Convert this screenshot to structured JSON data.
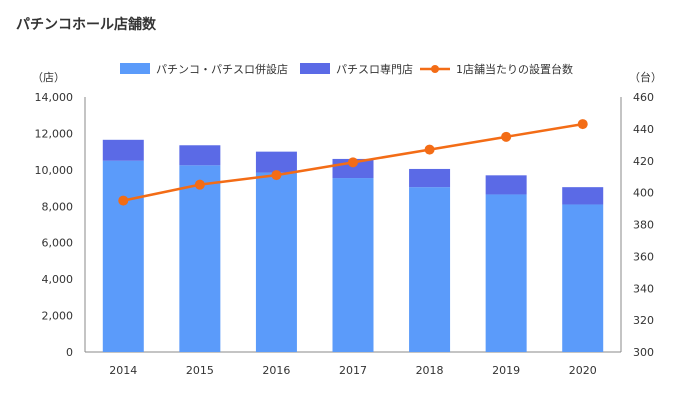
{
  "chart_data": {
    "type": "bar",
    "title": "パチンコホール店舗数",
    "categories": [
      "2014",
      "2015",
      "2016",
      "2017",
      "2018",
      "2019",
      "2020"
    ],
    "series": [
      {
        "name": "パチンコ・パチスロ併設店",
        "type": "bar",
        "stack": "stores",
        "axis": "left",
        "color": "#5b9bfa",
        "values": [
          10500,
          10250,
          9850,
          9550,
          9050,
          8650,
          8100
        ]
      },
      {
        "name": "パチスロ専門店",
        "type": "bar",
        "stack": "stores",
        "axis": "left",
        "color": "#5b6ae6",
        "values": [
          1150,
          1100,
          1150,
          1050,
          1000,
          1050,
          950
        ]
      },
      {
        "name": "1店舗当たりの設置台数",
        "type": "line",
        "axis": "right",
        "color": "#f36c16",
        "values": [
          395,
          405,
          411,
          419,
          427,
          435,
          443
        ]
      }
    ],
    "y_left": {
      "unit": "（店）",
      "min": 0,
      "max": 14000,
      "step": 2000,
      "ticks": [
        "0",
        "2,000",
        "4,000",
        "6,000",
        "8,000",
        "10,000",
        "12,000",
        "14,000"
      ]
    },
    "y_right": {
      "unit": "（台）",
      "min": 300,
      "max": 460,
      "step": 20,
      "ticks": [
        "300",
        "320",
        "340",
        "360",
        "380",
        "400",
        "420",
        "440",
        "460"
      ]
    },
    "legend_position": "top",
    "grid": false
  }
}
